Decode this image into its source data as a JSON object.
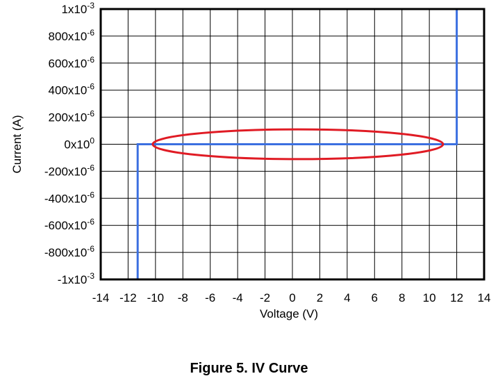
{
  "chart_data": {
    "type": "line",
    "xlabel": "Voltage (V)",
    "ylabel": "Current (A)",
    "xlim": [
      -14,
      14
    ],
    "ylim": [
      -0.001,
      0.001
    ],
    "x_ticks": [
      -14,
      -12,
      -10,
      -8,
      -6,
      -4,
      -2,
      0,
      2,
      4,
      6,
      8,
      10,
      12,
      14
    ],
    "x_tick_labels": [
      "-14",
      "-12",
      "-10",
      "-8",
      "-6",
      "-4",
      "-2",
      "0",
      "2",
      "4",
      "6",
      "8",
      "10",
      "12",
      "14"
    ],
    "y_ticks": [
      {
        "value": 0.001,
        "mantissa": "1",
        "exp": "-3"
      },
      {
        "value": 0.0008,
        "mantissa": "800",
        "exp": "-6"
      },
      {
        "value": 0.0006,
        "mantissa": "600",
        "exp": "-6"
      },
      {
        "value": 0.0004,
        "mantissa": "400",
        "exp": "-6"
      },
      {
        "value": 0.0002,
        "mantissa": "200",
        "exp": "-6"
      },
      {
        "value": 0,
        "mantissa": "0",
        "exp": "0"
      },
      {
        "value": -0.0002,
        "mantissa": "-200",
        "exp": "-6"
      },
      {
        "value": -0.0004,
        "mantissa": "-400",
        "exp": "-6"
      },
      {
        "value": -0.0006,
        "mantissa": "-600",
        "exp": "-6"
      },
      {
        "value": -0.0008,
        "mantissa": "-800",
        "exp": "-6"
      },
      {
        "value": -0.001,
        "mantissa": "-1",
        "exp": "-3"
      }
    ],
    "tick_label_separator": "x10",
    "grid": true,
    "series": [
      {
        "color": "#3b6fe0",
        "x": [
          -11.3,
          -11.3,
          12.0,
          12.0
        ],
        "y": [
          -0.001,
          0,
          0,
          0.001
        ]
      }
    ],
    "annotations": [
      {
        "type": "ellipse",
        "color": "#e01b24",
        "center_x": 0.4,
        "center_y": 0,
        "radius_x": 10.6,
        "radius_y": 0.00011
      }
    ]
  },
  "caption": "Figure 5. IV Curve"
}
